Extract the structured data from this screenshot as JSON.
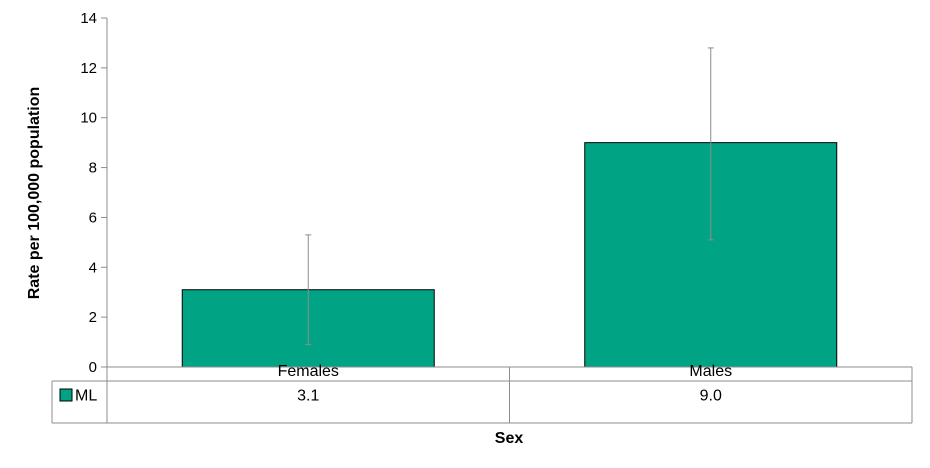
{
  "chart_data": {
    "type": "bar",
    "title": "",
    "xlabel": "Sex",
    "ylabel": "Rate per 100,000 population",
    "ylim": [
      0,
      14
    ],
    "yticks": [
      0,
      2,
      4,
      6,
      8,
      10,
      12,
      14
    ],
    "categories": [
      "Females",
      "Males"
    ],
    "series": [
      {
        "name": "ML",
        "values": [
          3.1,
          9.0
        ],
        "value_labels": [
          "3.1",
          "9.0"
        ],
        "error_low": [
          0.9,
          5.1
        ],
        "error_high": [
          5.3,
          12.8
        ],
        "color": "#00a383"
      }
    ],
    "grid": false,
    "legend": "data-table"
  }
}
